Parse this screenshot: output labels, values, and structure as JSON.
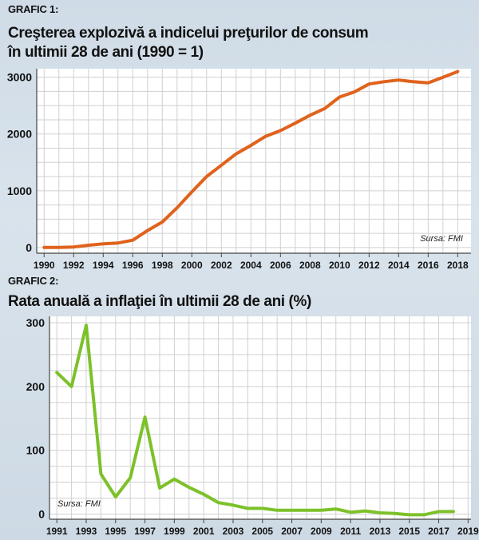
{
  "chart1_label": "GRAFIC 1:",
  "chart1_title_line1": "Creşterea explozivă a indicelui preţurilor de consum",
  "chart1_title_line2": "în ultimii 28 de ani (1990 = 1)",
  "chart2_label": "GRAFIC 2:",
  "chart2_title": "Rata anuală a inflaţiei în ultimii 28 de ani (%)",
  "colors": {
    "series1": "#e0621c",
    "series2": "#7dc12a",
    "grid": "#d0d0d0"
  },
  "chart_data": [
    {
      "type": "line",
      "title": "Creşterea explozivă a indicelui preţurilor de consum în ultimii 28 de ani (1990 = 1)",
      "source": "Sursa: FMI",
      "x": [
        1990,
        1991,
        1992,
        1993,
        1994,
        1995,
        1996,
        1997,
        1998,
        1999,
        2000,
        2001,
        2002,
        2003,
        2004,
        2005,
        2006,
        2007,
        2008,
        2009,
        2010,
        2011,
        2012,
        2013,
        2014,
        2015,
        2016,
        2017,
        2018
      ],
      "y": [
        1,
        3,
        10,
        40,
        65,
        80,
        130,
        300,
        450,
        700,
        980,
        1250,
        1450,
        1650,
        1800,
        1960,
        2060,
        2190,
        2330,
        2450,
        2650,
        2740,
        2880,
        2920,
        2950,
        2920,
        2900,
        3000,
        3100
      ],
      "xticks": [
        "1990",
        "1992",
        "1994",
        "1996",
        "1998",
        "2000",
        "2002",
        "2004",
        "2006",
        "2008",
        "2010",
        "2012",
        "2014",
        "2016",
        "2018"
      ],
      "yticks": [
        "0",
        "1000",
        "2000",
        "3000"
      ],
      "xlim": [
        1989.5,
        2018.9
      ],
      "ylim": [
        -100,
        3150
      ],
      "grid": true
    },
    {
      "type": "line",
      "title": "Rata anuală a inflaţiei în ultimii 28 de ani (%)",
      "source": "Sursa: FMI",
      "x": [
        1991,
        1992,
        1993,
        1994,
        1995,
        1996,
        1997,
        1998,
        1999,
        2000,
        2001,
        2002,
        2003,
        2004,
        2005,
        2006,
        2007,
        2008,
        2009,
        2010,
        2011,
        2012,
        2013,
        2014,
        2015,
        2016,
        2017,
        2018
      ],
      "y": [
        222,
        200,
        296,
        63,
        27,
        57,
        152,
        41,
        55,
        42,
        31,
        18,
        14,
        9,
        9,
        6,
        6,
        6,
        6,
        8,
        3,
        5,
        2,
        1,
        -1,
        -1,
        4,
        4
      ],
      "xticks": [
        "1991",
        "1993",
        "1995",
        "1997",
        "1999",
        "2001",
        "2003",
        "2005",
        "2007",
        "2009",
        "2011",
        "2013",
        "2015",
        "2017",
        "2019"
      ],
      "yticks": [
        "0",
        "100",
        "200",
        "300"
      ],
      "xlim": [
        1990.5,
        2019.2
      ],
      "ylim": [
        -8,
        310
      ],
      "grid": true
    }
  ]
}
